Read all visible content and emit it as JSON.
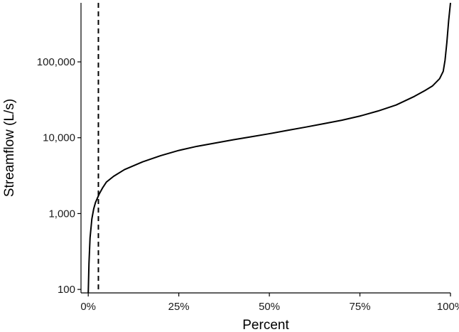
{
  "chart_data": {
    "type": "line",
    "xlabel": "Percent",
    "ylabel": "Streamflow (L/s)",
    "x_scale": "linear",
    "y_scale": "log",
    "xlim": [
      -0.02,
      1.0
    ],
    "ylim": [
      90,
      600000
    ],
    "grid": false,
    "x_ticks": [
      {
        "value": 0,
        "label": "0%"
      },
      {
        "value": 0.25,
        "label": "25%"
      },
      {
        "value": 0.5,
        "label": "50%"
      },
      {
        "value": 0.75,
        "label": "75%"
      },
      {
        "value": 1.0,
        "label": "100%"
      }
    ],
    "y_ticks": [
      {
        "value": 100,
        "label": "100"
      },
      {
        "value": 1000,
        "label": "1,000"
      },
      {
        "value": 10000,
        "label": "10,000"
      },
      {
        "value": 100000,
        "label": "100,000"
      }
    ],
    "reference_line": {
      "orientation": "vertical",
      "x": 0.028,
      "style": "dashed"
    },
    "series": [
      {
        "x": [
          0.0,
          0.002,
          0.005,
          0.01,
          0.015,
          0.02,
          0.03,
          0.04,
          0.05,
          0.07,
          0.1,
          0.15,
          0.2,
          0.25,
          0.3,
          0.35,
          0.4,
          0.45,
          0.5,
          0.55,
          0.6,
          0.65,
          0.7,
          0.75,
          0.8,
          0.85,
          0.9,
          0.93,
          0.95,
          0.97,
          0.98,
          0.985,
          0.99,
          0.995,
          1.0
        ],
        "y": [
          90,
          220,
          480,
          850,
          1150,
          1400,
          1800,
          2200,
          2600,
          3100,
          3800,
          4800,
          5800,
          6800,
          7700,
          8500,
          9400,
          10300,
          11300,
          12500,
          13800,
          15300,
          17000,
          19300,
          22500,
          27000,
          35000,
          42000,
          48000,
          60000,
          75000,
          105000,
          180000,
          350000,
          600000
        ]
      }
    ]
  }
}
